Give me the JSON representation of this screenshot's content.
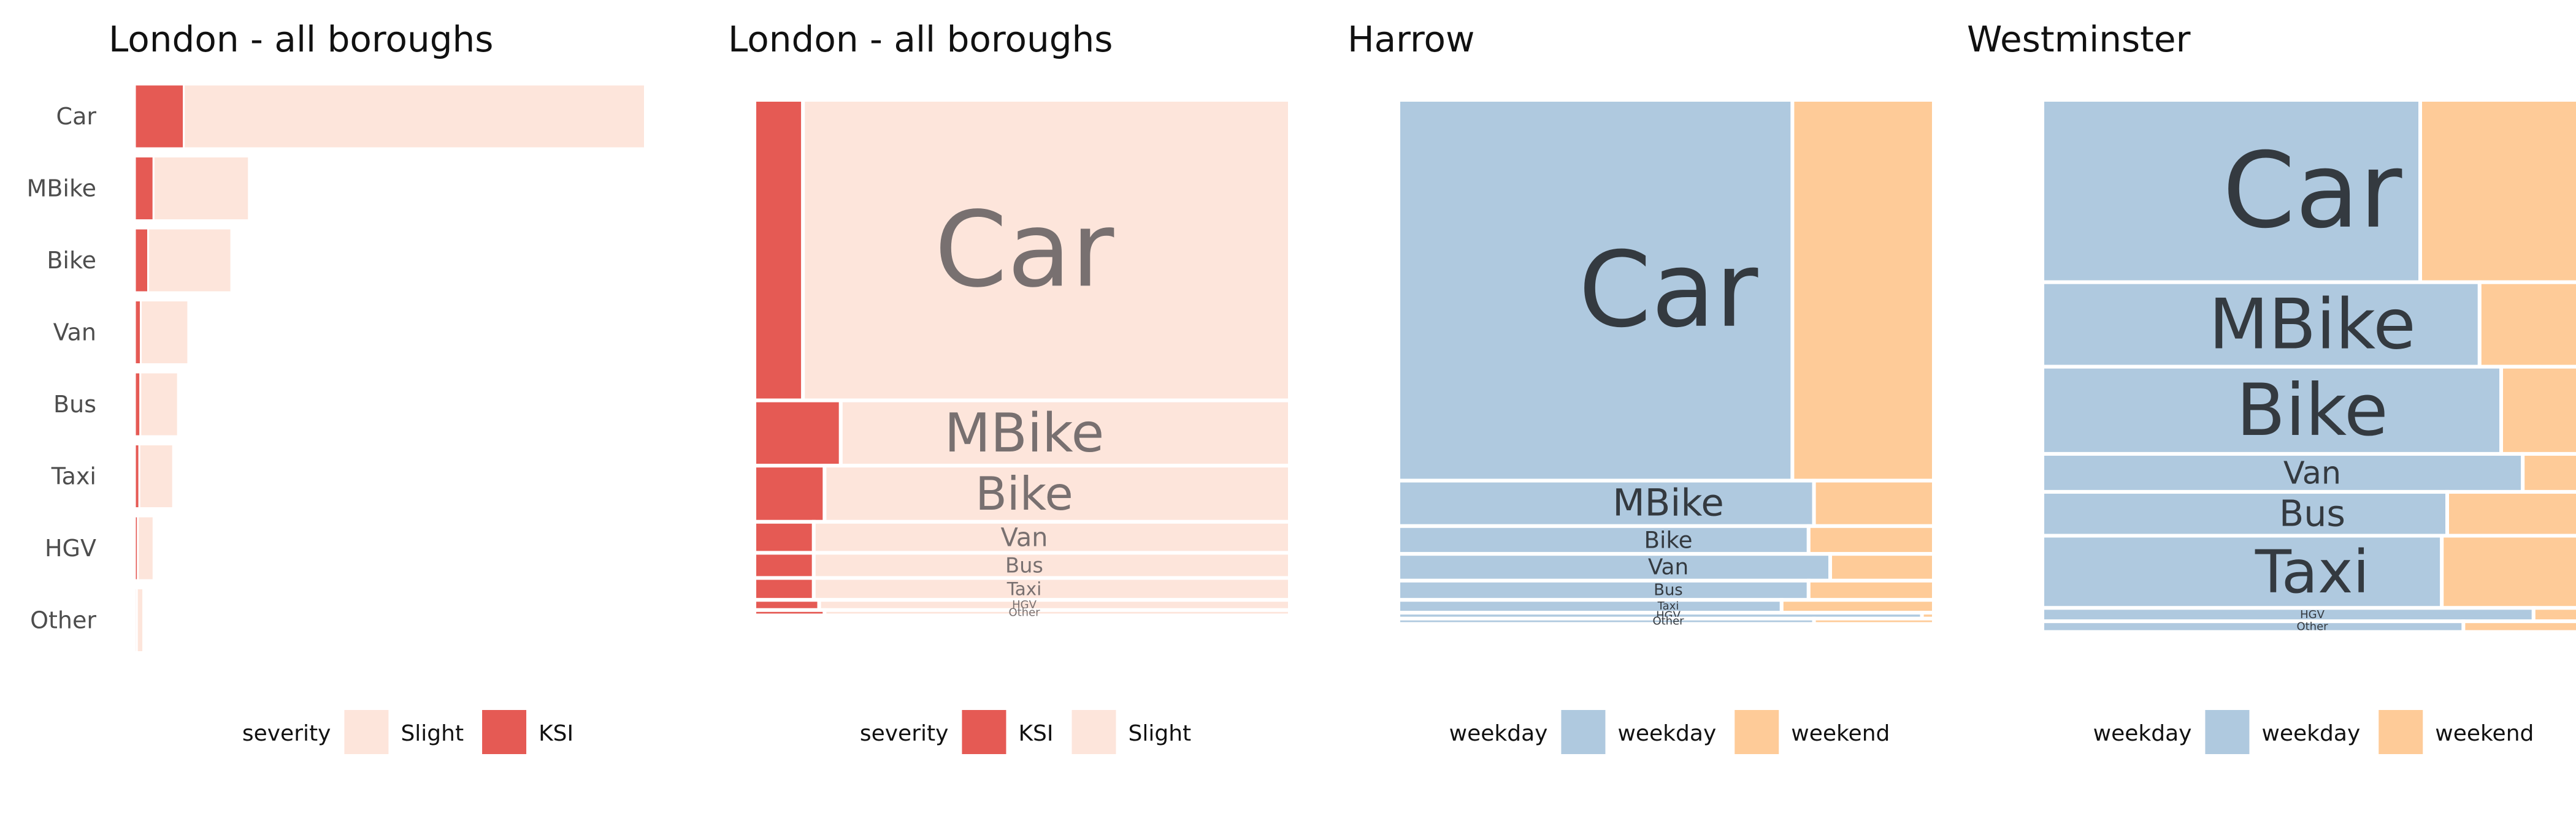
{
  "chart_data": [
    {
      "type": "bar",
      "orientation": "horizontal",
      "stacked": true,
      "title": "London - all boroughs",
      "categories": [
        "Car",
        "MBike",
        "Bike",
        "Van",
        "Bus",
        "Taxi",
        "HGV",
        "Other"
      ],
      "series": [
        {
          "name": "KSI",
          "color": "#e55a54",
          "values": [
            1000,
            380,
            270,
            120,
            110,
            90,
            60,
            40
          ]
        },
        {
          "name": "Slight",
          "color": "#fde5db",
          "values": [
            10100,
            1950,
            1700,
            970,
            770,
            690,
            320,
            130
          ]
        }
      ],
      "legend": {
        "title": "severity",
        "items": [
          "Slight",
          "KSI"
        ],
        "position": "bottom"
      },
      "grid": false
    },
    {
      "type": "mosaic",
      "title": "London - all boroughs",
      "categories": [
        "Car",
        "MBike",
        "Bike",
        "Van",
        "Bus",
        "Taxi",
        "HGV",
        "Other"
      ],
      "category_share": [
        0.562,
        0.122,
        0.105,
        0.058,
        0.047,
        0.041,
        0.019,
        0.01
      ],
      "series": [
        {
          "name": "KSI",
          "color": "#e55a54",
          "share": [
            0.09,
            0.16,
            0.13,
            0.11,
            0.11,
            0.11,
            0.12,
            0.13
          ]
        },
        {
          "name": "Slight",
          "color": "#fde5db",
          "share": [
            0.91,
            0.84,
            0.87,
            0.89,
            0.89,
            0.89,
            0.88,
            0.87
          ]
        }
      ],
      "label_color": "#787070",
      "legend": {
        "title": "severity",
        "items": [
          "KSI",
          "Slight"
        ],
        "position": "bottom"
      }
    },
    {
      "type": "mosaic",
      "title": "Harrow",
      "categories": [
        "Car",
        "MBike",
        "Bike",
        "Van",
        "Bus",
        "Taxi",
        "HGV",
        "Other"
      ],
      "category_share": [
        0.712,
        0.085,
        0.052,
        0.05,
        0.036,
        0.024,
        0.011,
        0.01
      ],
      "series": [
        {
          "name": "weekday",
          "color": "#afc9df",
          "share": [
            0.73,
            0.77,
            0.76,
            0.8,
            0.76,
            0.71,
            0.97,
            0.77
          ]
        },
        {
          "name": "weekend",
          "color": "#fecb98",
          "share": [
            0.27,
            0.23,
            0.24,
            0.2,
            0.24,
            0.29,
            0.03,
            0.23
          ]
        }
      ],
      "label_color": "#343a40",
      "legend": {
        "title": "weekday",
        "items": [
          "weekday",
          "weekend"
        ],
        "position": "bottom"
      }
    },
    {
      "type": "mosaic",
      "title": "Westminster",
      "categories": [
        "Car",
        "MBike",
        "Bike",
        "Van",
        "Bus",
        "Taxi",
        "HGV",
        "Other"
      ],
      "category_share": [
        0.341,
        0.158,
        0.163,
        0.071,
        0.082,
        0.135,
        0.025,
        0.02
      ],
      "series": [
        {
          "name": "weekday",
          "color": "#afc9df",
          "share": [
            0.7,
            0.81,
            0.85,
            0.89,
            0.75,
            0.74,
            0.91,
            0.78
          ]
        },
        {
          "name": "weekend",
          "color": "#fecb98",
          "share": [
            0.3,
            0.19,
            0.15,
            0.11,
            0.25,
            0.26,
            0.09,
            0.22
          ]
        }
      ],
      "label_color": "#343a40",
      "legend": {
        "title": "weekday",
        "items": [
          "weekday",
          "weekend"
        ],
        "position": "bottom"
      }
    }
  ]
}
